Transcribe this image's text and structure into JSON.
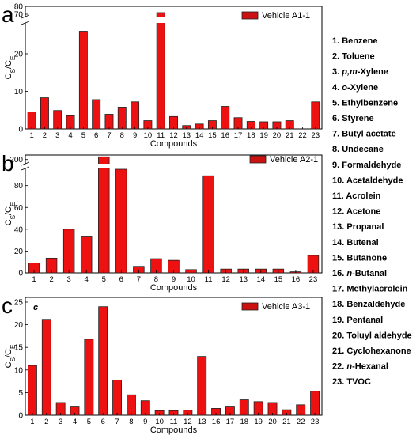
{
  "compounds": [
    {
      "num": "1.",
      "pre": "",
      "it": "",
      "post": "Benzene"
    },
    {
      "num": "2.",
      "pre": "",
      "it": "",
      "post": "Toluene"
    },
    {
      "num": "3.",
      "pre": "",
      "it": "p,m",
      "post": "-Xylene"
    },
    {
      "num": "4.",
      "pre": "",
      "it": "o",
      "post": "-Xylene"
    },
    {
      "num": "5.",
      "pre": "",
      "it": "",
      "post": "Ethylbenzene"
    },
    {
      "num": "6.",
      "pre": "",
      "it": "",
      "post": "Styrene"
    },
    {
      "num": "7.",
      "pre": "",
      "it": "",
      "post": "Butyl acetate"
    },
    {
      "num": "8.",
      "pre": "",
      "it": "",
      "post": "Undecane"
    },
    {
      "num": "9.",
      "pre": "",
      "it": "",
      "post": "Formaldehyde"
    },
    {
      "num": "10.",
      "pre": "",
      "it": "",
      "post": "Acetaldehyde"
    },
    {
      "num": "11.",
      "pre": "",
      "it": "",
      "post": "Acrolein"
    },
    {
      "num": "12.",
      "pre": "",
      "it": "",
      "post": "Acetone"
    },
    {
      "num": "13.",
      "pre": "",
      "it": "",
      "post": "Propanal"
    },
    {
      "num": "14.",
      "pre": "",
      "it": "",
      "post": "Butenal"
    },
    {
      "num": "15.",
      "pre": "",
      "it": "",
      "post": "Butanone"
    },
    {
      "num": "16.",
      "pre": "",
      "it": "n",
      "post": "-Butanal"
    },
    {
      "num": "17.",
      "pre": "",
      "it": "",
      "post": "Methylacrolein"
    },
    {
      "num": "18.",
      "pre": "",
      "it": "",
      "post": "Benzaldehyde"
    },
    {
      "num": "19.",
      "pre": "",
      "it": "",
      "post": "Pentanal"
    },
    {
      "num": "20.",
      "pre": "",
      "it": "",
      "post": "Toluyl aldehyde"
    },
    {
      "num": "21.",
      "pre": "",
      "it": "",
      "post": "Cyclohexanone"
    },
    {
      "num": "22.",
      "pre": "",
      "it": "n",
      "post": "-Hexanal"
    },
    {
      "num": "23.",
      "pre": "",
      "it": "",
      "post": "TVOC"
    }
  ],
  "colors": {
    "bar": "#ee1111",
    "bar_edge": "#222222",
    "legend_box": "#cc1111"
  },
  "chart_data": [
    {
      "type": "bar",
      "panel_letter": "a",
      "inner_letter": "",
      "legend": "Vehicle A1-1",
      "series_name": "Vehicle A1-1",
      "xlabel": "Compounds",
      "ylabel_main": "C",
      "ylabel_sub1": "S",
      "ylabel_slash": "/C",
      "ylabel_sub2": "E",
      "categories": [
        "1",
        "2",
        "3",
        "4",
        "5",
        "6",
        "7",
        "8",
        "9",
        "10",
        "11",
        "12",
        "13",
        "14",
        "15",
        "16",
        "17",
        "18",
        "19",
        "20",
        "21",
        "22",
        "23"
      ],
      "values": [
        4.5,
        8.3,
        4.9,
        3.5,
        26.0,
        7.8,
        3.9,
        5.8,
        7.2,
        2.2,
        72.0,
        3.3,
        0.9,
        1.3,
        2.2,
        6.0,
        3.0,
        2.0,
        1.9,
        1.9,
        2.2,
        0,
        7.2
      ],
      "ylim": [
        0,
        80
      ],
      "axis_break": [
        28,
        68
      ],
      "yticks_low": [
        "0",
        "10",
        "20"
      ],
      "yticks_high": [
        "70",
        "80"
      ]
    },
    {
      "type": "bar",
      "panel_letter": "b",
      "inner_letter": "",
      "legend": "Vehicle A2-1",
      "series_name": "Vehicle A2-1",
      "xlabel": "Compounds",
      "ylabel_main": "C",
      "ylabel_sub1": "S",
      "ylabel_slash": "/C",
      "ylabel_sub2": "E",
      "categories": [
        "1",
        "2",
        "3",
        "4",
        "5",
        "6",
        "7",
        "8",
        "9",
        "10",
        "11",
        "12",
        "13",
        "14",
        "15",
        "16",
        "23"
      ],
      "values": [
        9,
        13.5,
        40,
        33,
        212,
        160,
        6,
        13,
        11.5,
        3,
        89,
        3.5,
        3.5,
        3.5,
        3.5,
        1,
        16
      ],
      "ylim": [
        0,
        220
      ],
      "axis_break": [
        95,
        185
      ],
      "yticks_low": [
        "0",
        "20",
        "40",
        "60",
        "80"
      ],
      "yticks_high": [
        "200"
      ]
    },
    {
      "type": "bar",
      "panel_letter": "c",
      "inner_letter": "c",
      "legend": "Vehicle A3-1",
      "series_name": "Vehicle A3-1",
      "xlabel": "Compounds",
      "ylabel_main": "C",
      "ylabel_sub1": "S",
      "ylabel_slash": "/C",
      "ylabel_sub2": "E",
      "categories": [
        "1",
        "2",
        "3",
        "4",
        "5",
        "6",
        "7",
        "8",
        "9",
        "10",
        "11",
        "12",
        "13",
        "16",
        "17",
        "18",
        "19",
        "20",
        "21",
        "22",
        "23"
      ],
      "values": [
        11,
        21.2,
        2.8,
        2.0,
        16.8,
        24.0,
        7.8,
        4.5,
        3.2,
        1.0,
        1.0,
        1.1,
        13.0,
        1.5,
        2.0,
        3.4,
        3.0,
        2.8,
        1.2,
        2.3,
        5.3
      ],
      "ylim": [
        0,
        25
      ],
      "yticks_low": [
        "0",
        "5",
        "10",
        "15",
        "20",
        "25"
      ]
    }
  ]
}
